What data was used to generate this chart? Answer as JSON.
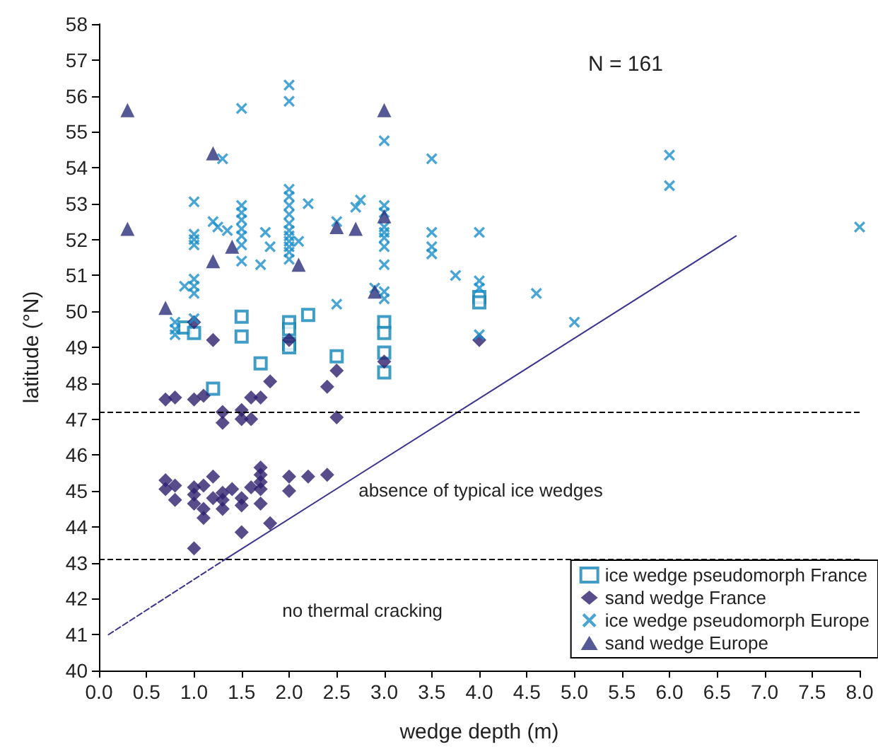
{
  "chart_data": {
    "type": "scatter",
    "xlabel": "wedge depth (m)",
    "ylabel": "latitude (°N)",
    "annotations": [
      "N = 161",
      "absence of typical ice wedges",
      "no thermal cracking"
    ],
    "xlim": [
      0,
      8
    ],
    "ylim": [
      40,
      58
    ],
    "xticks": [
      {
        "value": 0,
        "label": "0.0"
      },
      0.5,
      {
        "value": 1,
        "label": "1.0"
      },
      1.5,
      {
        "value": 2,
        "label": "2.0"
      },
      2.5,
      {
        "value": 3,
        "label": "3.0"
      },
      3.5,
      {
        "value": 4,
        "label": "4.0"
      },
      4.5,
      {
        "value": 5,
        "label": "5.0"
      },
      5.5,
      {
        "value": 6,
        "label": "6.0"
      },
      6.5,
      {
        "value": 7,
        "label": "7.0"
      },
      7.5,
      {
        "value": 8,
        "label": "8.0"
      }
    ],
    "yticks": [
      40,
      41,
      42,
      43,
      44,
      45,
      46,
      47,
      48,
      49,
      50,
      51,
      52,
      53,
      54,
      55,
      56,
      57,
      58
    ],
    "grid": false,
    "legend": "bottom right",
    "ref_lines": [
      {
        "axis": "y",
        "value": 47.2,
        "color": "#000000",
        "line_style": "dashed"
      },
      {
        "axis": "y",
        "value": 43.1,
        "color": "#000000",
        "line_style": "dashed"
      }
    ],
    "series": [
      {
        "name": "ice wedge pseudomorph France",
        "color": "#0f84b8",
        "marker": "square",
        "x": [
          0.9,
          1.0,
          1.5,
          1.5,
          1.2,
          1.7,
          2.0,
          2.0,
          2.0,
          2.0,
          2.2,
          2.5,
          3.0,
          3.0,
          3.0,
          3.0,
          4.0,
          4.0
        ],
        "values": [
          49.55,
          49.4,
          49.85,
          49.3,
          47.85,
          48.55,
          49.7,
          49.5,
          49.1,
          49.0,
          49.9,
          48.75,
          49.7,
          49.4,
          48.85,
          48.3,
          50.4,
          50.25
        ]
      },
      {
        "name": "sand wedge France",
        "color": "#2e1f6e",
        "marker": "diamond",
        "x": [
          1.0,
          1.2,
          2.0,
          0.7,
          0.8,
          1.0,
          1.1,
          1.3,
          1.3,
          1.5,
          1.5,
          1.6,
          1.6,
          1.7,
          1.8,
          2.4,
          2.5,
          2.5,
          3.0,
          4.0,
          0.7,
          0.7,
          0.8,
          0.8,
          1.0,
          1.0,
          1.0,
          1.1,
          1.1,
          1.1,
          1.2,
          1.2,
          1.3,
          1.3,
          1.3,
          1.4,
          1.5,
          1.5,
          1.5,
          1.6,
          1.7,
          1.7,
          1.7,
          1.7,
          1.7,
          1.8,
          2.0,
          2.0,
          2.2,
          2.4,
          1.0
        ],
        "values": [
          49.7,
          49.2,
          49.2,
          47.55,
          47.6,
          47.55,
          47.65,
          47.2,
          46.9,
          47.25,
          47.0,
          47.0,
          47.6,
          47.6,
          48.05,
          47.9,
          48.35,
          47.05,
          48.6,
          49.2,
          45.3,
          45.05,
          45.15,
          44.75,
          45.1,
          44.9,
          44.65,
          45.15,
          44.5,
          44.25,
          45.4,
          44.8,
          44.95,
          44.75,
          44.5,
          45.05,
          44.8,
          44.6,
          43.85,
          45.1,
          45.65,
          45.45,
          45.25,
          45.05,
          44.65,
          44.1,
          45.4,
          45.0,
          45.4,
          45.45,
          43.4
        ]
      },
      {
        "name": "ice wedge pseudomorph Europe",
        "color": "#1a8fca",
        "marker": "cross",
        "x": [
          1.5,
          2.0,
          2.0,
          1.3,
          1.0,
          1.0,
          1.0,
          1.0,
          1.0,
          1.0,
          1.0,
          0.9,
          1.0,
          0.8,
          0.8,
          0.8,
          1.2,
          1.25,
          1.35,
          1.5,
          1.5,
          1.5,
          1.5,
          1.5,
          1.5,
          1.5,
          1.7,
          1.75,
          1.8,
          2.0,
          2.0,
          2.0,
          2.0,
          2.0,
          2.0,
          2.0,
          2.0,
          2.0,
          2.0,
          2.0,
          2.1,
          2.2,
          2.5,
          2.5,
          2.7,
          2.75,
          2.9,
          3.0,
          3.0,
          3.0,
          3.0,
          3.0,
          3.0,
          3.0,
          3.0,
          3.0,
          3.0,
          3.5,
          3.5,
          3.5,
          3.5,
          3.75,
          4.0,
          4.0,
          4.0,
          4.0,
          4.6,
          5.0,
          6.0,
          6.0,
          8.0
        ],
        "values": [
          55.65,
          56.3,
          55.85,
          54.25,
          53.05,
          52.15,
          52.0,
          51.85,
          50.9,
          50.7,
          50.5,
          50.7,
          49.8,
          49.7,
          49.5,
          49.35,
          52.5,
          52.35,
          52.25,
          52.95,
          52.75,
          52.55,
          52.3,
          52.1,
          51.85,
          51.4,
          51.3,
          52.2,
          51.8,
          53.4,
          53.2,
          52.95,
          52.7,
          52.45,
          52.25,
          52.1,
          51.95,
          51.8,
          51.65,
          51.45,
          51.95,
          53.0,
          52.5,
          50.2,
          52.9,
          53.1,
          50.65,
          54.75,
          52.95,
          52.75,
          52.35,
          52.2,
          52.05,
          51.8,
          51.3,
          50.55,
          50.35,
          54.25,
          52.2,
          51.8,
          51.6,
          51.0,
          52.2,
          50.85,
          50.65,
          49.35,
          50.5,
          49.7,
          54.35,
          53.5,
          52.35
        ]
      },
      {
        "name": "sand wedge Europe",
        "color": "#2a2f7a",
        "marker": "triangle",
        "x": [
          0.3,
          0.3,
          1.2,
          0.7,
          1.2,
          1.4,
          2.1,
          2.5,
          3.0,
          3.0,
          2.7,
          2.9
        ],
        "values": [
          55.6,
          52.3,
          54.4,
          50.1,
          51.4,
          51.8,
          51.3,
          52.35,
          55.6,
          52.65,
          52.3,
          50.55
        ]
      },
      {
        "type": "line",
        "color": "#3a3590",
        "line_style": "dashed",
        "marker": "none",
        "x": [
          0.1,
          1.33
        ],
        "values": [
          41,
          43.1
        ]
      },
      {
        "type": "line",
        "color": "#3a3590",
        "line_style": "solid",
        "marker": "none",
        "x": [
          1.33,
          6.7
        ],
        "values": [
          43.1,
          52.1
        ]
      }
    ]
  }
}
